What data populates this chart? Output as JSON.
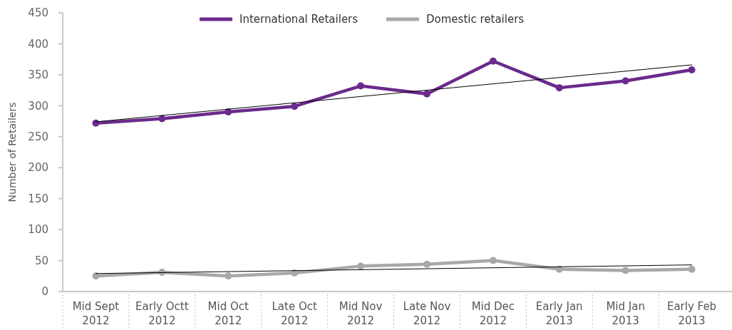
{
  "chart_data": {
    "type": "line",
    "ylabel": "Number of Retailers",
    "categories": [
      "Mid Sept 2012",
      "Early Octt 2012",
      "Mid Oct 2012",
      "Late Oct 2012",
      "Mid Nov 2012",
      "Late Nov 2012",
      "Mid Dec 2012",
      "Early Jan 2013",
      "Mid Jan 2013",
      "Early Feb 2013"
    ],
    "series": [
      {
        "name": "International Retailers",
        "color": "#6b2a8c",
        "values": [
          272,
          279,
          290,
          299,
          332,
          319,
          372,
          329,
          340,
          358
        ]
      },
      {
        "name": "Domestic retailers",
        "color": "#a8a8ac",
        "values": [
          25,
          31,
          25,
          30,
          41,
          44,
          50,
          36,
          34,
          36
        ]
      },
      {
        "color": "#000000",
        "x": [
          "Mid Sept 2012",
          "Early Feb 2013"
        ],
        "values": [
          274,
          366
        ],
        "marker": "none"
      },
      {
        "color": "#000000",
        "x": [
          "Mid Sept 2012",
          "Early Feb 2013"
        ],
        "values": [
          29,
          43
        ],
        "marker": "none"
      }
    ],
    "ylim": [
      0,
      450
    ],
    "yticks": [
      0,
      50,
      100,
      150,
      200,
      250,
      300,
      350,
      400,
      450
    ],
    "marker": "circle",
    "legend": "top",
    "grid": false
  }
}
